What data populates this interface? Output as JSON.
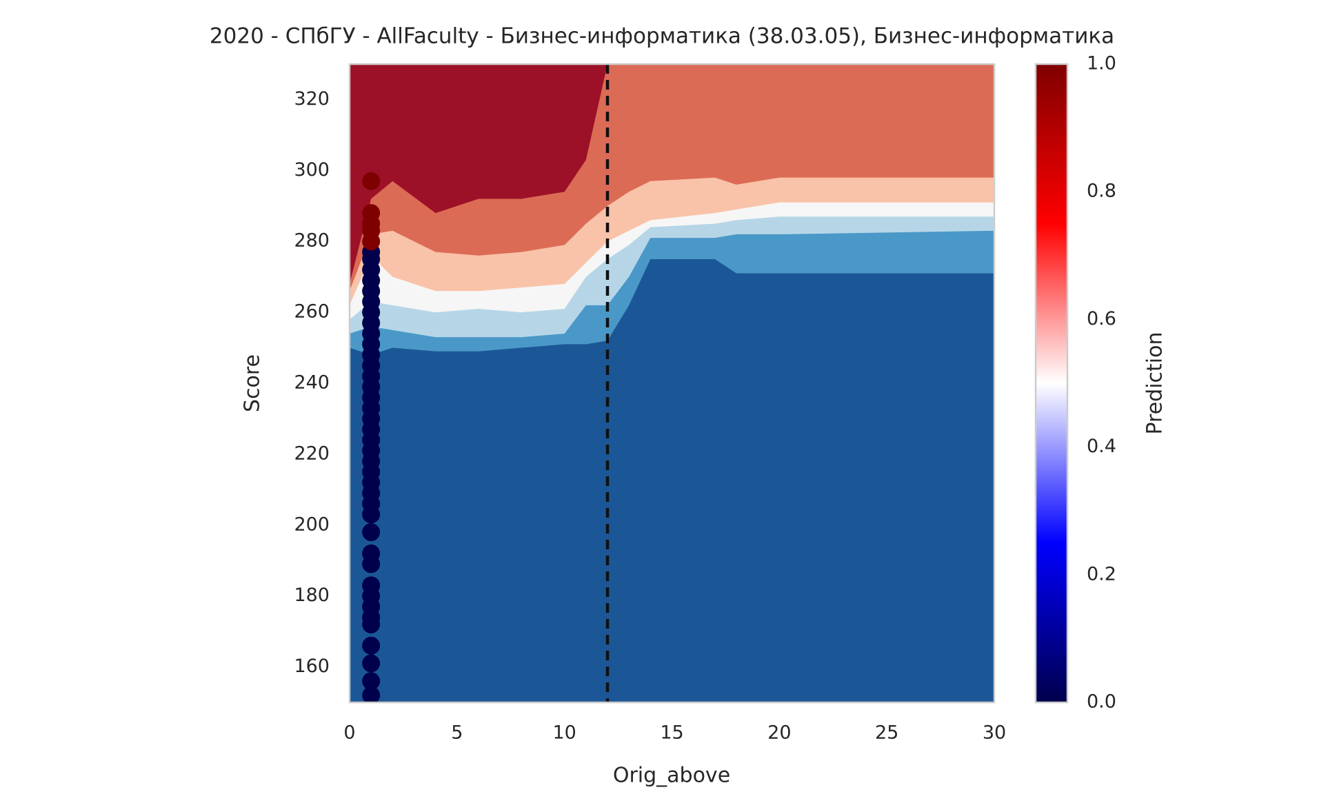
{
  "chart_data": {
    "type": "contour",
    "title": "2020 - СПбГУ - AllFaculty - Бизнес-информатика (38.03.05), Бизнес-информатика",
    "x_label": "Orig_above",
    "y_label": "Score",
    "colorbar_label": "Prediction",
    "xlim": [
      0,
      30
    ],
    "ylim": [
      150,
      330
    ],
    "xticks": [
      0,
      5,
      10,
      15,
      20,
      25,
      30
    ],
    "yticks": [
      160,
      180,
      200,
      220,
      240,
      260,
      280,
      300,
      320
    ],
    "top_color": "#9c1127",
    "contour_x": [
      0,
      1,
      2,
      4,
      6,
      8,
      10,
      11,
      12,
      13,
      14,
      17,
      18,
      20,
      30
    ],
    "contour_bands": [
      {
        "color": "#dc6b55",
        "top": [
          268,
          292,
          297,
          288,
          292,
          292,
          294,
          303,
          330,
          330,
          330,
          330,
          330,
          330,
          330
        ]
      },
      {
        "color": "#f9c3a9",
        "top": [
          266,
          282,
          283,
          277,
          276,
          277,
          279,
          285,
          290,
          294,
          297,
          298,
          296,
          298,
          298
        ]
      },
      {
        "color": "#f6f6f6",
        "top": [
          262,
          276,
          270,
          266,
          266,
          267,
          268,
          274,
          280,
          283,
          286,
          288,
          289,
          291,
          291
        ]
      },
      {
        "color": "#b6d6e8",
        "top": [
          258,
          263,
          262,
          260,
          261,
          260,
          261,
          270,
          275,
          279,
          284,
          285,
          286,
          287,
          287
        ]
      },
      {
        "color": "#4a98c7",
        "top": [
          254,
          256,
          255,
          253,
          253,
          253,
          254,
          262,
          262,
          270,
          281,
          281,
          282,
          282,
          283
        ]
      },
      {
        "color": "#1b5796",
        "top": [
          250,
          248,
          250,
          249,
          249,
          250,
          251,
          251,
          252,
          262,
          275,
          275,
          271,
          271,
          271
        ]
      }
    ],
    "vline": 12,
    "points": {
      "x": [
        1,
        1,
        1,
        1,
        1,
        1,
        1,
        1,
        1,
        1,
        1,
        1,
        1,
        1,
        1,
        1,
        1,
        1,
        1,
        1,
        1,
        1,
        1,
        1,
        1,
        1,
        1,
        1,
        1,
        1,
        1,
        1,
        1,
        1,
        1,
        1,
        1,
        1,
        1,
        1,
        1,
        1,
        1
      ],
      "y": [
        152,
        156,
        161,
        166,
        172,
        174,
        177,
        180,
        183,
        189,
        192,
        198,
        203,
        206,
        209,
        212,
        215,
        218,
        221,
        224,
        227,
        230,
        233,
        236,
        239,
        242,
        245,
        248,
        251,
        254,
        257,
        260,
        263,
        266,
        269,
        272,
        275,
        277,
        280,
        283,
        285,
        288,
        297
      ],
      "prediction": [
        0,
        0,
        0,
        0,
        0,
        0,
        0,
        0,
        0,
        0,
        0,
        0,
        0,
        0,
        0,
        0,
        0,
        0,
        0,
        0,
        0,
        0,
        0,
        0,
        0,
        0,
        0,
        0,
        0,
        0,
        0,
        0,
        0,
        0,
        0,
        0,
        0,
        0,
        1,
        1,
        1,
        1,
        1
      ]
    },
    "colorbar": {
      "lim": [
        0,
        1
      ],
      "ticks": [
        {
          "value": 0,
          "label": "0.0"
        },
        0.2,
        0.4,
        0.6,
        0.8,
        {
          "value": 1,
          "label": "1.0"
        }
      ],
      "stops": [
        {
          "value": 0,
          "color": "#00004c"
        },
        {
          "value": 0.25,
          "color": "#0000ff"
        },
        {
          "value": 0.5,
          "color": "#ffffff"
        },
        {
          "value": 0.75,
          "color": "#ff0000"
        },
        {
          "value": 1,
          "color": "#7f0000"
        }
      ]
    }
  }
}
